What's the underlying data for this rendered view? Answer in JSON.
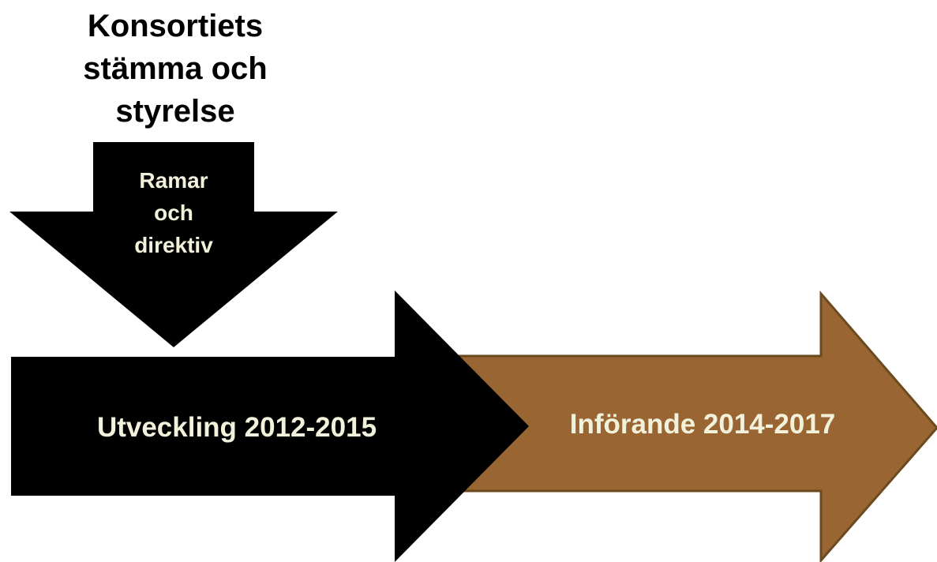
{
  "heading": {
    "lines": [
      "Konsortiets",
      "stämma och",
      "styrelse"
    ]
  },
  "down_arrow": {
    "label_lines": [
      "Ramar",
      "och",
      "direktiv"
    ],
    "fill": "#000000",
    "text_color": "#f2f2dc"
  },
  "arrows": [
    {
      "label": "Utveckling 2012-2015",
      "fill": "#000000",
      "text_color": "#f2f2dc"
    },
    {
      "label": "Införande 2014-2017",
      "fill": "#996633",
      "stroke": "#6b4a1f",
      "text_color": "#f2f2dc"
    }
  ]
}
